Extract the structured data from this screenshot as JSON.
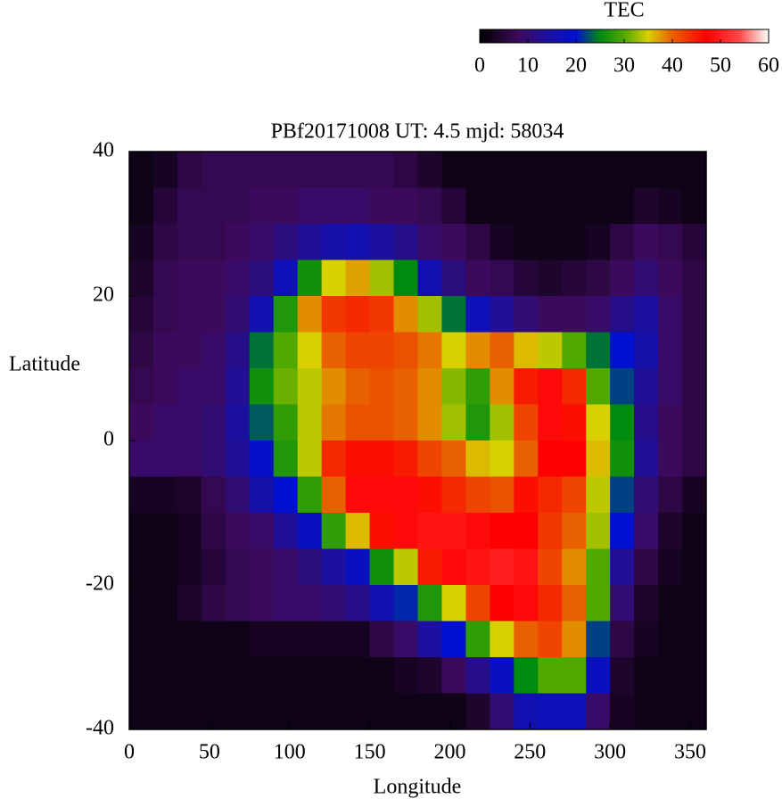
{
  "chart_data": {
    "type": "heatmap",
    "title": "PBf20171008  UT: 4.5  mjd: 58034",
    "x_label": "Longitude",
    "y_label": "Latitude",
    "xlim": [
      0,
      360
    ],
    "ylim": [
      -40,
      40
    ],
    "xticks": [
      0,
      50,
      100,
      150,
      200,
      250,
      300,
      350
    ],
    "yticks": [
      -40,
      -20,
      0,
      20,
      40
    ],
    "x": [
      7.5,
      22.5,
      37.5,
      52.5,
      67.5,
      82.5,
      97.5,
      112.5,
      127.5,
      142.5,
      157.5,
      172.5,
      187.5,
      202.5,
      217.5,
      232.5,
      247.5,
      262.5,
      277.5,
      292.5,
      307.5,
      322.5,
      337.5,
      352.5
    ],
    "y": [
      37.5,
      32.5,
      27.5,
      22.5,
      17.5,
      12.5,
      7.5,
      2.5,
      -2.5,
      -7.5,
      -12.5,
      -17.5,
      -22.5,
      -27.5,
      -32.5,
      -37.5
    ],
    "z": [
      [
        2,
        3,
        6,
        7,
        7,
        7,
        7,
        7,
        7,
        7,
        7,
        6,
        4,
        2,
        2,
        2,
        2,
        2,
        2,
        2,
        2,
        2,
        2,
        2
      ],
      [
        2,
        5,
        7,
        7,
        7,
        8,
        8,
        9,
        9,
        9,
        8,
        8,
        7,
        5,
        2,
        2,
        2,
        2,
        2,
        2,
        2,
        4,
        3,
        2
      ],
      [
        3,
        6,
        7,
        7,
        8,
        9,
        11,
        13,
        15,
        16,
        14,
        12,
        9,
        8,
        6,
        3,
        2,
        2,
        2,
        3,
        6,
        8,
        7,
        5
      ],
      [
        4,
        7,
        8,
        8,
        9,
        11,
        17,
        26,
        35,
        37,
        33,
        25,
        16,
        11,
        8,
        7,
        5,
        4,
        5,
        6,
        8,
        10,
        8,
        6
      ],
      [
        5,
        7,
        8,
        8,
        10,
        16,
        27,
        38,
        43,
        44,
        43,
        38,
        33,
        24,
        17,
        13,
        10,
        8,
        8,
        9,
        12,
        14,
        9,
        6
      ],
      [
        6,
        8,
        8,
        9,
        12,
        24,
        30,
        35,
        40,
        42,
        42,
        41,
        39,
        35,
        38,
        40,
        36,
        34,
        30,
        24,
        20,
        15,
        9,
        6
      ],
      [
        7,
        8,
        9,
        9,
        13,
        26,
        31,
        34,
        38,
        40,
        41,
        40,
        38,
        32,
        28,
        38,
        45,
        48,
        44,
        30,
        22,
        13,
        9,
        6
      ],
      [
        8,
        9,
        9,
        10,
        14,
        23,
        28,
        34,
        39,
        41,
        41,
        40,
        38,
        33,
        27,
        33,
        42,
        48,
        46,
        35,
        25,
        12,
        8,
        6
      ],
      [
        9,
        9,
        9,
        10,
        13,
        19,
        27,
        34,
        44,
        46,
        46,
        45,
        42,
        40,
        36,
        35,
        40,
        47,
        47,
        36,
        26,
        13,
        8,
        6
      ],
      [
        3,
        3,
        4,
        7,
        10,
        15,
        20,
        28,
        40,
        48,
        48,
        48,
        46,
        44,
        42,
        41,
        46,
        44,
        42,
        34,
        22,
        10,
        6,
        3
      ],
      [
        2,
        2,
        3,
        6,
        8,
        9,
        13,
        18,
        28,
        36,
        46,
        48,
        49,
        49,
        48,
        47,
        47,
        43,
        40,
        33,
        20,
        9,
        4,
        2
      ],
      [
        2,
        2,
        3,
        5,
        7,
        8,
        9,
        11,
        14,
        18,
        26,
        34,
        45,
        48,
        49,
        50,
        49,
        42,
        38,
        30,
        13,
        6,
        3,
        2
      ],
      [
        2,
        2,
        4,
        6,
        7,
        8,
        9,
        9,
        10,
        12,
        16,
        21,
        27,
        35,
        42,
        47,
        48,
        44,
        40,
        30,
        10,
        4,
        2,
        2
      ],
      [
        2,
        2,
        2,
        2,
        2,
        3,
        3,
        3,
        3,
        3,
        6,
        9,
        14,
        20,
        28,
        35,
        40,
        42,
        38,
        22,
        6,
        3,
        2,
        2
      ],
      [
        2,
        2,
        2,
        2,
        2,
        2,
        2,
        2,
        2,
        2,
        2,
        3,
        4,
        8,
        12,
        18,
        25,
        30,
        30,
        18,
        4,
        2,
        2,
        2
      ],
      [
        2,
        2,
        2,
        2,
        2,
        2,
        2,
        2,
        2,
        2,
        2,
        2,
        2,
        2,
        4,
        10,
        16,
        17,
        17,
        9,
        3,
        2,
        2,
        2
      ]
    ],
    "colorscale": [
      {
        "value": 0,
        "color": "#000000"
      },
      {
        "value": 8,
        "color": "#3c0a5c"
      },
      {
        "value": 14,
        "color": "#1c10a0"
      },
      {
        "value": 20,
        "color": "#0010d0"
      },
      {
        "value": 25,
        "color": "#008a10"
      },
      {
        "value": 30,
        "color": "#50a800"
      },
      {
        "value": 35,
        "color": "#d8d000"
      },
      {
        "value": 40,
        "color": "#e86000"
      },
      {
        "value": 47,
        "color": "#ff0000"
      },
      {
        "value": 54,
        "color": "#ff4848"
      },
      {
        "value": 60,
        "color": "#ffffff"
      }
    ],
    "colorbar": {
      "title": "TEC",
      "lim": [
        0,
        60
      ],
      "ticks": [
        0,
        10,
        20,
        30,
        40,
        50,
        60
      ]
    }
  }
}
